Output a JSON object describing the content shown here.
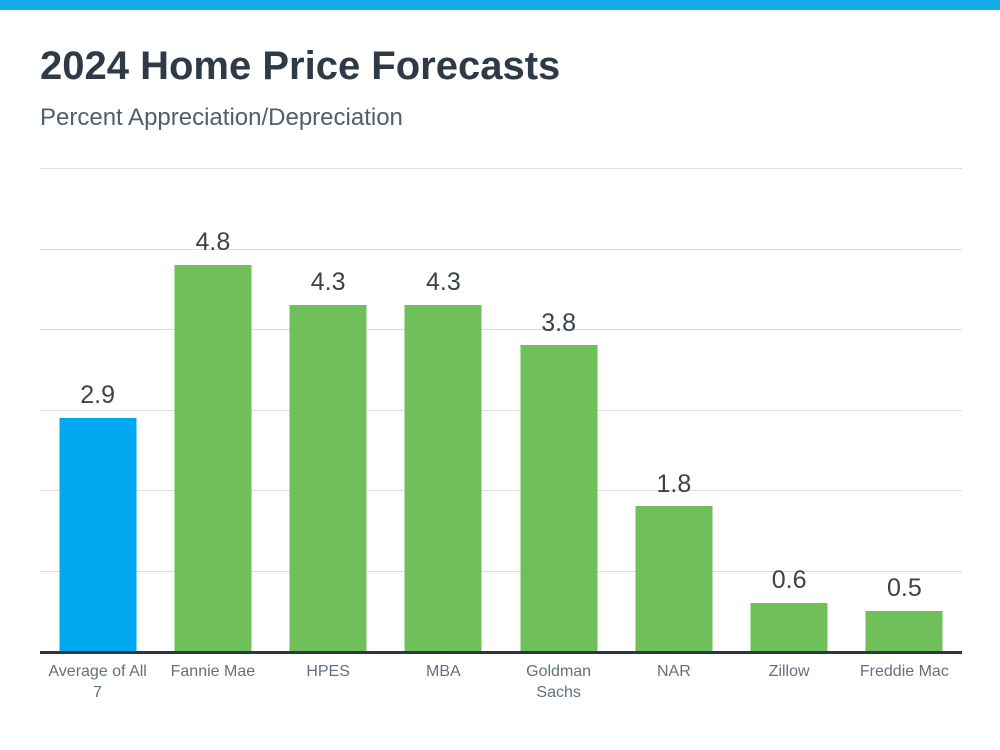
{
  "header": {
    "title": "2024 Home Price Forecasts",
    "subtitle": "Percent Appreciation/Depreciation"
  },
  "colors": {
    "accent_band": "#12ADEA",
    "highlight_bar": "#00A9EF",
    "default_bar": "#6FBF5A",
    "title_text": "#2E3A45",
    "subtitle_text": "#4F5F6B",
    "value_label_text": "#39434C",
    "category_label_text": "#60717F",
    "gridline": "#DDDDDD",
    "axis_line": "#2B3840"
  },
  "chart_data": {
    "type": "bar",
    "title": "2024 Home Price Forecasts",
    "subtitle": "Percent Appreciation/Depreciation",
    "categories": [
      "Average of All 7",
      "Fannie Mae",
      "HPES",
      "MBA",
      "Goldman Sachs",
      "NAR",
      "Zillow",
      "Freddie Mac"
    ],
    "values": [
      2.9,
      4.8,
      4.3,
      4.3,
      3.8,
      1.8,
      0.6,
      0.5
    ],
    "value_labels": [
      "2.9",
      "4.8",
      "4.3",
      "4.3",
      "3.8",
      "1.8",
      "0.6",
      "0.5"
    ],
    "highlight_index": 0,
    "xlabel": "",
    "ylabel": "",
    "ylim": [
      0,
      6
    ],
    "gridline_interval": 1,
    "grid": true,
    "legend": false,
    "y_axis_tick_labels_visible": false
  }
}
